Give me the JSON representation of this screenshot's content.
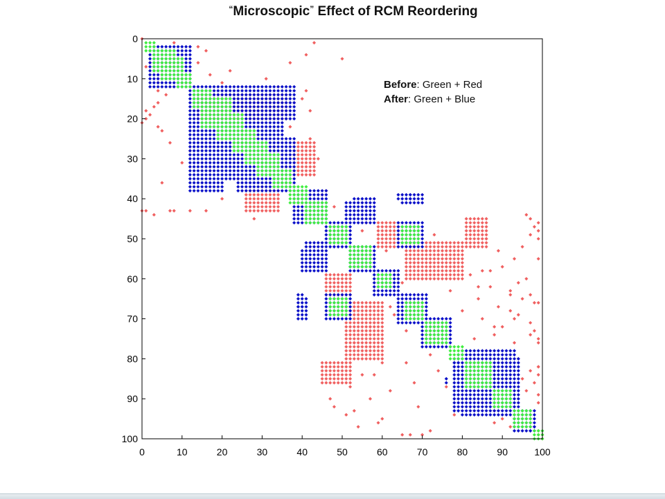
{
  "title": {
    "open_quote": "“",
    "word": "Microscopic",
    "close_quote": "”",
    "rest": " Effect of RCM Reordering"
  },
  "legend": {
    "before_label": "Before",
    "before_text": ": Green + Red",
    "after_label": "After",
    "after_text": ": Green + Blue"
  },
  "chart_data": {
    "type": "scatter",
    "subtype": "sparsity-pattern (spy plot)",
    "matrix_size": 100,
    "xlim": [
      0,
      100
    ],
    "ylim": [
      0,
      100
    ],
    "y_reversed": true,
    "x_ticks": [
      0,
      10,
      20,
      30,
      40,
      50,
      60,
      70,
      80,
      90,
      100
    ],
    "y_ticks": [
      0,
      10,
      20,
      30,
      40,
      50,
      60,
      70,
      80,
      90,
      100
    ],
    "grid": false,
    "colors": {
      "red": "#f06060",
      "blue": "#0a10c8",
      "green": "#40ee40"
    },
    "series": [
      {
        "name": "Green",
        "description": "nonzeros near the main diagonal (shared by both orderings)",
        "blocks": [
          [
            1,
            3,
            1,
            3
          ],
          [
            3,
            8,
            3,
            8
          ],
          [
            5,
            10,
            5,
            10
          ],
          [
            9,
            12,
            9,
            12
          ],
          [
            13,
            17,
            13,
            17
          ],
          [
            15,
            22,
            15,
            22
          ],
          [
            19,
            25,
            19,
            25
          ],
          [
            23,
            28,
            23,
            28
          ],
          [
            26,
            31,
            26,
            31
          ],
          [
            29,
            34,
            29,
            34
          ],
          [
            33,
            37,
            33,
            37
          ],
          [
            37,
            41,
            37,
            41
          ],
          [
            41,
            46,
            41,
            46
          ],
          [
            47,
            51,
            47,
            51
          ],
          [
            52,
            57,
            52,
            57
          ],
          [
            59,
            62,
            59,
            62
          ],
          [
            66,
            70,
            66,
            70
          ],
          [
            71,
            76,
            71,
            76
          ],
          [
            77,
            80,
            77,
            80
          ],
          [
            81,
            87,
            81,
            87
          ],
          [
            88,
            92,
            88,
            92
          ],
          [
            93,
            97,
            93,
            97
          ],
          [
            98,
            100,
            98,
            100
          ],
          [
            47,
            51,
            65,
            69
          ],
          [
            65,
            69,
            47,
            51
          ]
        ],
        "points": []
      },
      {
        "name": "Blue",
        "description": "nonzeros after RCM reordering (banded)",
        "blocks": [
          [
            3,
            12,
            2,
            12
          ],
          [
            2,
            12,
            3,
            12
          ],
          [
            13,
            38,
            12,
            20
          ],
          [
            12,
            20,
            13,
            38
          ],
          [
            14,
            35,
            21,
            35
          ],
          [
            21,
            35,
            14,
            35
          ],
          [
            25,
            38,
            24,
            38
          ],
          [
            38,
            46,
            38,
            46
          ],
          [
            46,
            52,
            46,
            52
          ],
          [
            41,
            46,
            51,
            55
          ],
          [
            51,
            55,
            41,
            46
          ],
          [
            52,
            58,
            52,
            58
          ],
          [
            58,
            64,
            58,
            64
          ],
          [
            64,
            71,
            64,
            71
          ],
          [
            70,
            77,
            70,
            77
          ],
          [
            79,
            89,
            79,
            89
          ],
          [
            80,
            93,
            78,
            94
          ],
          [
            78,
            94,
            80,
            93
          ],
          [
            93,
            98,
            93,
            98
          ],
          [
            39,
            41,
            65,
            67
          ],
          [
            39,
            41,
            68,
            70
          ],
          [
            65,
            67,
            39,
            41
          ],
          [
            68,
            70,
            39,
            41
          ],
          [
            64,
            70,
            46,
            52
          ],
          [
            46,
            52,
            64,
            70
          ],
          [
            53,
            58,
            40,
            46
          ],
          [
            40,
            46,
            53,
            58
          ],
          [
            48,
            52,
            64,
            68
          ],
          [
            64,
            68,
            48,
            52
          ],
          [
            83,
            88,
            83,
            88
          ]
        ],
        "points": [
          [
            64,
            39
          ],
          [
            64,
            40
          ],
          [
            67,
            39
          ],
          [
            67,
            40
          ],
          [
            39,
            64
          ],
          [
            40,
            64
          ],
          [
            39,
            67
          ],
          [
            40,
            67
          ],
          [
            81,
            78
          ],
          [
            82,
            78
          ],
          [
            81,
            79
          ],
          [
            85,
            76
          ],
          [
            86,
            76
          ],
          [
            97,
            98
          ],
          [
            98,
            97
          ]
        ]
      },
      {
        "name": "Red",
        "description": "nonzeros of the original ordering (scattered far from diagonal)",
        "blocks": [
          [
            14,
            20,
            14,
            36
          ],
          [
            26,
            34,
            38,
            43
          ],
          [
            38,
            43,
            26,
            34
          ],
          [
            51,
            60,
            66,
            80
          ],
          [
            66,
            80,
            51,
            60
          ],
          [
            81,
            86,
            45,
            52
          ],
          [
            45,
            52,
            81,
            86
          ],
          [
            59,
            64,
            46,
            52
          ],
          [
            46,
            52,
            59,
            64
          ]
        ],
        "points": [
          [
            0,
            0
          ],
          [
            1,
            8
          ],
          [
            1,
            43
          ],
          [
            2,
            12
          ],
          [
            2,
            14
          ],
          [
            3,
            16
          ],
          [
            4,
            41
          ],
          [
            5,
            50
          ],
          [
            6,
            2
          ],
          [
            6,
            14
          ],
          [
            6,
            37
          ],
          [
            7,
            1
          ],
          [
            8,
            3
          ],
          [
            8,
            22
          ],
          [
            8,
            12
          ],
          [
            9,
            17
          ],
          [
            10,
            31
          ],
          [
            11,
            20
          ],
          [
            12,
            34
          ],
          [
            13,
            4
          ],
          [
            13,
            41
          ],
          [
            14,
            6
          ],
          [
            15,
            40
          ],
          [
            16,
            38
          ],
          [
            17,
            3
          ],
          [
            18,
            42
          ],
          [
            19,
            2
          ],
          [
            20,
            24
          ],
          [
            21,
            0
          ],
          [
            22,
            37
          ],
          [
            23,
            5
          ],
          [
            24,
            28
          ],
          [
            25,
            42
          ],
          [
            26,
            7
          ],
          [
            27,
            33
          ],
          [
            28,
            12
          ],
          [
            29,
            38
          ],
          [
            30,
            44
          ],
          [
            31,
            10
          ],
          [
            32,
            36
          ],
          [
            33,
            17
          ],
          [
            34,
            42
          ],
          [
            35,
            24
          ],
          [
            36,
            5
          ],
          [
            37,
            30
          ],
          [
            38,
            46
          ],
          [
            39,
            45
          ],
          [
            40,
            20
          ],
          [
            41,
            33
          ],
          [
            42,
            48
          ],
          [
            43,
            8
          ],
          [
            44,
            3
          ],
          [
            45,
            28
          ],
          [
            46,
            56
          ],
          [
            47,
            67
          ],
          [
            48,
            55
          ],
          [
            49,
            73
          ],
          [
            50,
            86
          ],
          [
            51,
            74
          ],
          [
            52,
            95
          ],
          [
            53,
            61
          ],
          [
            54,
            78
          ],
          [
            55,
            99
          ],
          [
            56,
            68
          ],
          [
            57,
            90
          ],
          [
            58,
            71
          ],
          [
            59,
            82
          ],
          [
            60,
            96
          ],
          [
            61,
            65
          ],
          [
            62,
            87
          ],
          [
            63,
            77
          ],
          [
            64,
            92
          ],
          [
            65,
            84
          ],
          [
            66,
            98
          ],
          [
            67,
            69
          ],
          [
            68,
            80
          ],
          [
            69,
            63
          ],
          [
            70,
            93
          ],
          [
            71,
            58
          ],
          [
            72,
            88
          ],
          [
            73,
            66
          ],
          [
            74,
            97
          ],
          [
            75,
            83
          ],
          [
            76,
            99
          ],
          [
            77,
            54
          ],
          [
            78,
            86
          ],
          [
            79,
            72
          ],
          [
            80,
            94
          ],
          [
            81,
            66
          ],
          [
            82,
            99
          ],
          [
            83,
            74
          ],
          [
            84,
            58
          ],
          [
            85,
            91
          ],
          [
            86,
            68
          ],
          [
            87,
            76
          ],
          [
            88,
            62
          ],
          [
            89,
            99
          ],
          [
            90,
            47
          ],
          [
            91,
            85
          ],
          [
            92,
            69
          ],
          [
            93,
            53
          ],
          [
            94,
            78
          ],
          [
            95,
            60
          ],
          [
            96,
            88
          ],
          [
            97,
            54
          ],
          [
            98,
            72
          ],
          [
            99,
            67
          ],
          [
            100,
            100
          ],
          [
            98,
            99
          ],
          [
            99,
            99
          ],
          [
            99,
            100
          ],
          [
            43,
            0
          ],
          [
            43,
            1
          ],
          [
            43,
            7
          ],
          [
            43,
            12
          ],
          [
            43,
            16
          ],
          [
            20,
            1
          ],
          [
            18,
            1
          ],
          [
            22,
            4
          ],
          [
            10,
            4
          ],
          [
            11,
            4
          ],
          [
            16,
            4
          ],
          [
            52,
            67
          ],
          [
            53,
            71
          ],
          [
            54,
            74
          ],
          [
            56,
            72
          ],
          [
            57,
            78
          ],
          [
            58,
            85
          ],
          [
            60,
            70
          ],
          [
            62,
            84
          ],
          [
            63,
            92
          ],
          [
            64,
            97
          ],
          [
            65,
            95
          ],
          [
            66,
            99
          ],
          [
            67,
            89
          ],
          [
            68,
            92
          ],
          [
            69,
            94
          ],
          [
            70,
            85
          ],
          [
            71,
            97
          ],
          [
            72,
            90
          ],
          [
            73,
            98
          ],
          [
            74,
            88
          ],
          [
            75,
            99
          ],
          [
            76,
            93
          ],
          [
            44,
            96
          ],
          [
            45,
            97
          ],
          [
            46,
            99
          ],
          [
            47,
            98
          ],
          [
            48,
            99
          ],
          [
            49,
            97
          ],
          [
            50,
            99
          ],
          [
            53,
            89
          ],
          [
            55,
            93
          ],
          [
            58,
            87
          ],
          [
            61,
            94
          ],
          [
            67,
            62
          ],
          [
            72,
            57
          ],
          [
            76,
            53
          ],
          [
            81,
            60
          ],
          [
            84,
            55
          ],
          [
            87,
            52
          ],
          [
            90,
            57
          ],
          [
            92,
            48
          ],
          [
            94,
            51
          ],
          [
            96,
            59
          ],
          [
            99,
            65
          ],
          [
            99,
            70
          ],
          [
            85,
            95
          ],
          [
            88,
            96
          ],
          [
            91,
            99
          ],
          [
            93,
            88
          ],
          [
            95,
            90
          ],
          [
            97,
            92
          ],
          [
            86,
            98
          ],
          [
            84,
            99
          ],
          [
            83,
            97
          ],
          [
            82,
            99
          ]
        ]
      }
    ]
  }
}
